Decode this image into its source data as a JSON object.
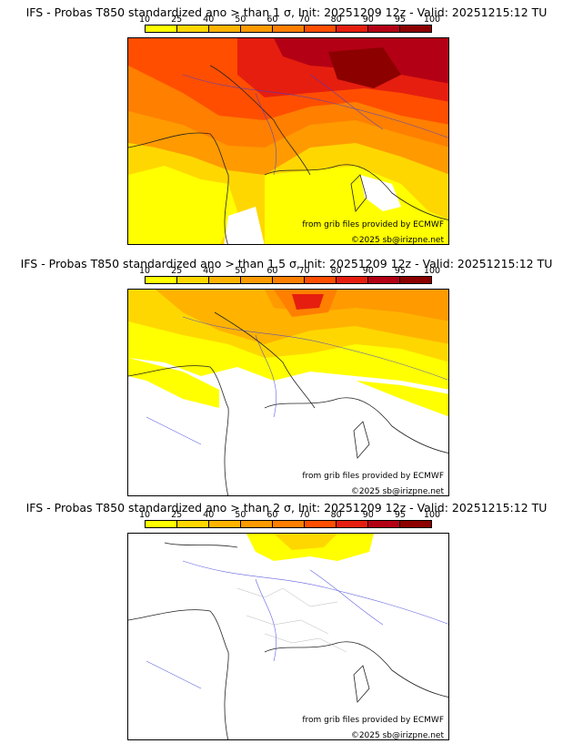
{
  "colorbar": {
    "ticks": [
      "10",
      "25",
      "40",
      "50",
      "60",
      "70",
      "80",
      "90",
      "95",
      "100"
    ],
    "colors": [
      "#ffff00",
      "#ffd700",
      "#ffb300",
      "#ff9a00",
      "#ff7f00",
      "#ff4e00",
      "#e61e0f",
      "#b40014",
      "#8c0000"
    ]
  },
  "panels": [
    {
      "title": "IFS - Probas T850  standardized ano > than 1 σ, Init: 20251209 12z - Valid: 20251215:12 TU",
      "threshold": "1 σ",
      "credit_source": "from grib files provided by ECMWF",
      "credit_copyright": "©2025 sb@irizpne.net"
    },
    {
      "title": "IFS - Probas T850  standardized ano > than 1.5 σ, Init: 20251209 12z - Valid: 20251215:12 TU",
      "threshold": "1.5 σ",
      "credit_source": "from grib files provided by ECMWF",
      "credit_copyright": "©2025 sb@irizpne.net"
    },
    {
      "title": "IFS - Probas T850  standardized ano > than 2 σ, Init: 20251209 12z - Valid: 20251215:12 TU",
      "threshold": "2 σ",
      "credit_source": "from grib files provided by ECMWF",
      "credit_copyright": "©2025 sb@irizpne.net"
    }
  ]
}
